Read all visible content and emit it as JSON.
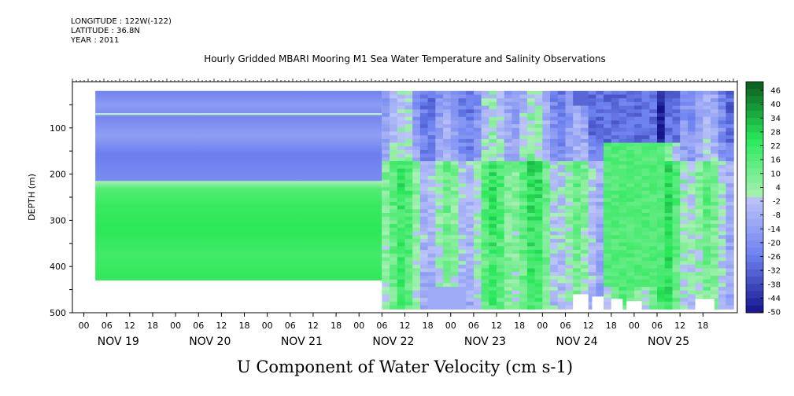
{
  "header": {
    "longitude": "LONGITUDE : 122W(-122)",
    "latitude": "LATITUDE : 36.8N",
    "year": "YEAR : 2011",
    "title": "Hourly Gridded MBARI Mooring M1 Sea Water Temperature and Salinity Observations",
    "variable_title": "U Component of Water Velocity (cm s-1)"
  },
  "chart_data": {
    "type": "heatmap",
    "title": "Hourly Gridded MBARI Mooring M1 Sea Water Temperature and Salinity Observations",
    "subtitle": "U Component of Water Velocity (cm s-1)",
    "ylabel": "DEPTH (m)",
    "xlabel": "",
    "y_ticks": [
      100,
      200,
      300,
      400,
      500
    ],
    "ylim": [
      500,
      0
    ],
    "x_hour_ticks": [
      "00",
      "06",
      "12",
      "18",
      "00",
      "06",
      "12",
      "18",
      "00",
      "06",
      "12",
      "18",
      "00",
      "06",
      "12",
      "18",
      "00",
      "06",
      "12",
      "18",
      "00",
      "06",
      "12",
      "18",
      "00",
      "06",
      "12",
      "18"
    ],
    "day_labels": [
      "NOV 19",
      "NOV 20",
      "NOV 21",
      "NOV 22",
      "NOV 23",
      "NOV 24",
      "NOV 25"
    ],
    "colorbar": {
      "labels": [
        "46",
        "40",
        "34",
        "28",
        "22",
        "16",
        "10",
        "4",
        "-2",
        "-8",
        "-14",
        "-20",
        "-26",
        "-32",
        "-38",
        "-44",
        "-50"
      ],
      "range": [
        -50,
        46
      ],
      "negative_color": "#1a1a90",
      "positive_color": "#0a4a1a"
    },
    "regions": [
      {
        "name": "constant-upper",
        "t_start_hour": 3,
        "t_end_hour": 78,
        "depth_top": 20,
        "depth_bottom": 215,
        "value": -18
      },
      {
        "name": "constant-line",
        "t_start_hour": 3,
        "t_end_hour": 78,
        "depth_top": 68,
        "depth_bottom": 72,
        "value": 2
      },
      {
        "name": "constant-lower",
        "t_start_hour": 3,
        "t_end_hour": 78,
        "depth_top": 215,
        "depth_bottom": 430,
        "value": 14
      }
    ]
  }
}
